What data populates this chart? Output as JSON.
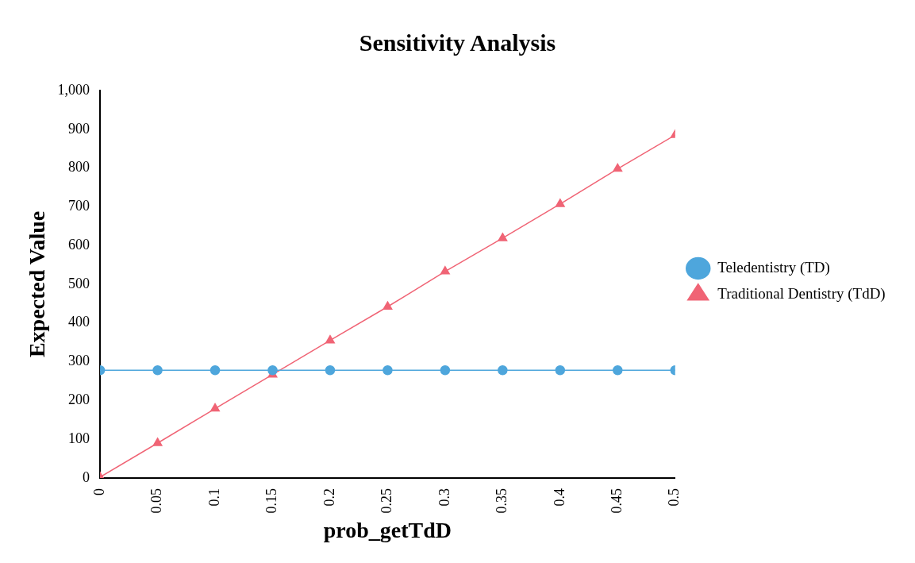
{
  "chart_data": {
    "type": "line",
    "title": "Sensitivity Analysis",
    "xlabel": "prob_getTdD",
    "ylabel": "Expected Value",
    "x": [
      0,
      0.05,
      0.1,
      0.15,
      0.2,
      0.25,
      0.3,
      0.35,
      0.4,
      0.45,
      0.5
    ],
    "series": [
      {
        "name": "Teledentistry (TD)",
        "color": "#4ea6dc",
        "marker": "circle",
        "values": [
          278,
          278,
          278,
          278,
          278,
          278,
          278,
          278,
          278,
          278,
          278
        ]
      },
      {
        "name": "Traditional Dentistry (TdD)",
        "color": "#f06475",
        "marker": "triangle",
        "values": [
          2,
          90,
          179,
          267,
          355,
          442,
          533,
          619,
          707,
          798,
          885
        ]
      }
    ],
    "xlim": [
      0,
      0.5
    ],
    "xticks": [
      0,
      0.05,
      0.1,
      0.15,
      0.2,
      0.25,
      0.3,
      0.35,
      0.4,
      0.45,
      0.5
    ],
    "ylim": [
      0,
      1000
    ],
    "yticks": [
      0,
      100,
      200,
      300,
      400,
      500,
      600,
      700,
      800,
      900,
      {
        "value": 1000,
        "label": "1,000"
      }
    ],
    "grid": false,
    "legend": "right",
    "line_style": "solid"
  }
}
